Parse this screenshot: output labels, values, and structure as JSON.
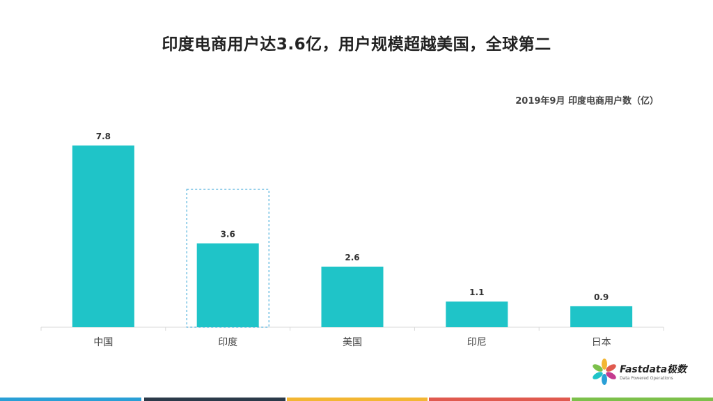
{
  "chart_data": {
    "type": "bar",
    "title": "印度电商用户达3.6亿，用户规模超越美国，全球第二",
    "subtitle": "2019年9月 印度电商用户数（亿）",
    "categories": [
      "中国",
      "印度",
      "美国",
      "印尼",
      "日本"
    ],
    "values": [
      7.8,
      3.6,
      2.6,
      1.1,
      0.9
    ],
    "value_labels": [
      "7.8",
      "3.6",
      "2.6",
      "1.1",
      "0.9"
    ],
    "highlight": "印度",
    "ylim": [
      0,
      8
    ],
    "grid": false,
    "bar_color": "#1fc4c8"
  },
  "logo": {
    "brand": "Fastdata极数",
    "tagline": "Data Powered Operations"
  },
  "footer_colors": [
    "#2a9fd6",
    "#2b3a4a",
    "#f3b633",
    "#e05a4f",
    "#7cc04b"
  ]
}
